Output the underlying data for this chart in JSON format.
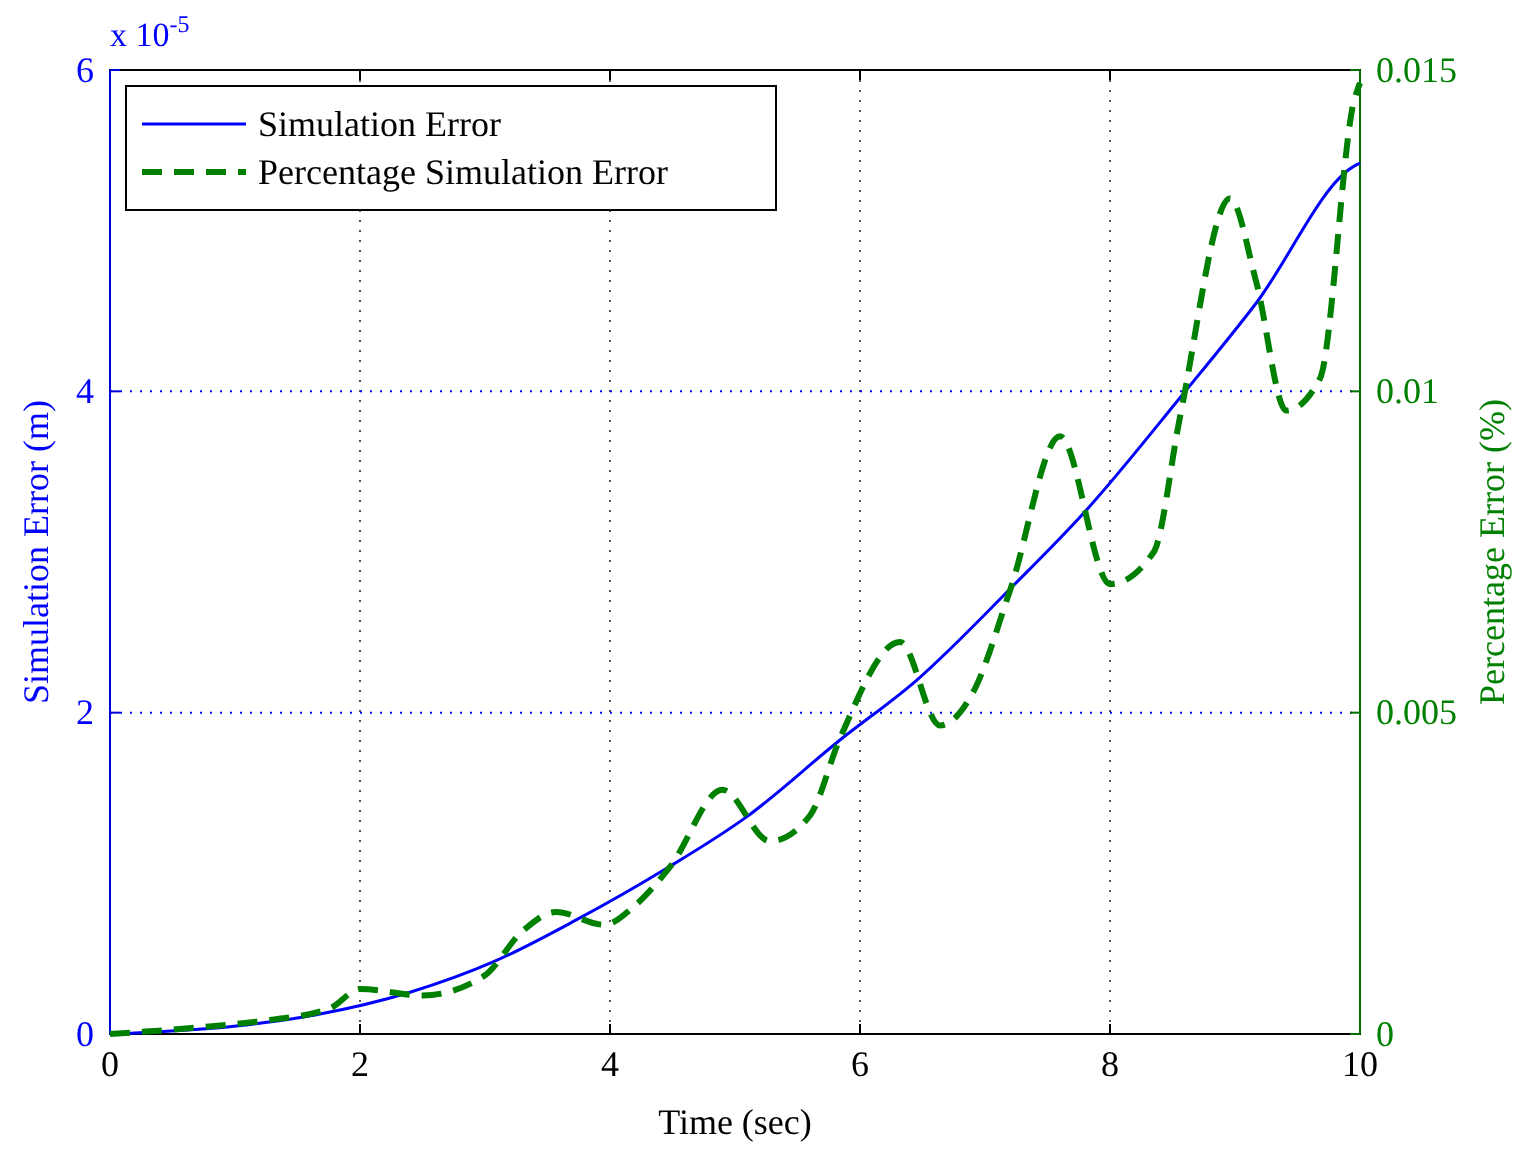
{
  "chart_data": {
    "type": "line",
    "xlabel": "Time (sec)",
    "ylabel": "Simulation Error (m)",
    "y2label": "Percentage Error (%)",
    "annotations": [
      "x 10$^{-5}$"
    ],
    "xlim": [
      0,
      10
    ],
    "xticks": [
      0,
      2,
      4,
      6,
      8,
      10
    ],
    "ylim": [
      0,
      6
    ],
    "yticks": [
      0,
      2,
      4,
      6
    ],
    "y2lim": [
      0,
      0.015
    ],
    "y2ticks": [
      0,
      0.005,
      0.01,
      0.015
    ],
    "grid": true,
    "legend": "top left",
    "series": [
      {
        "name": "Simulation Error",
        "color": "#0000ff",
        "line_style": "solid",
        "x": [
          0,
          1.01,
          1.65,
          2.4,
          3.07,
          3.73,
          4.45,
          5.09,
          5.84,
          6.45,
          7.2,
          7.81,
          8.56,
          9.17,
          9.95,
          10
        ],
        "values": [
          0,
          0.05,
          0.12,
          0.26,
          0.45,
          0.71,
          1.03,
          1.35,
          1.83,
          2.2,
          2.77,
          3.26,
          3.96,
          4.55,
          5.4,
          5.42
        ]
      },
      {
        "name": "Percentage Simulation Error",
        "color": "#008000",
        "line_style": "dashed",
        "axis": "y2",
        "x": [
          0,
          0.69,
          1.2,
          1.76,
          2.0,
          2.5,
          2.99,
          3.3,
          3.57,
          3.95,
          4.2,
          4.48,
          4.9,
          5.28,
          5.6,
          5.84,
          6.32,
          6.64,
          6.9,
          7.2,
          7.6,
          8.0,
          8.35,
          8.56,
          8.96,
          9.17,
          9.41,
          9.68,
          9.95,
          10
        ],
        "values": [
          0,
          0.0001,
          0.0002,
          0.0004,
          0.0007,
          0.0006,
          0.0009,
          0.0016,
          0.0019,
          0.0017,
          0.002,
          0.0026,
          0.0038,
          0.003,
          0.0034,
          0.0046,
          0.0061,
          0.0048,
          0.0053,
          0.0069,
          0.0093,
          0.007,
          0.0075,
          0.0096,
          0.013,
          0.0117,
          0.0097,
          0.0102,
          0.0145,
          0.0148
        ]
      }
    ]
  }
}
